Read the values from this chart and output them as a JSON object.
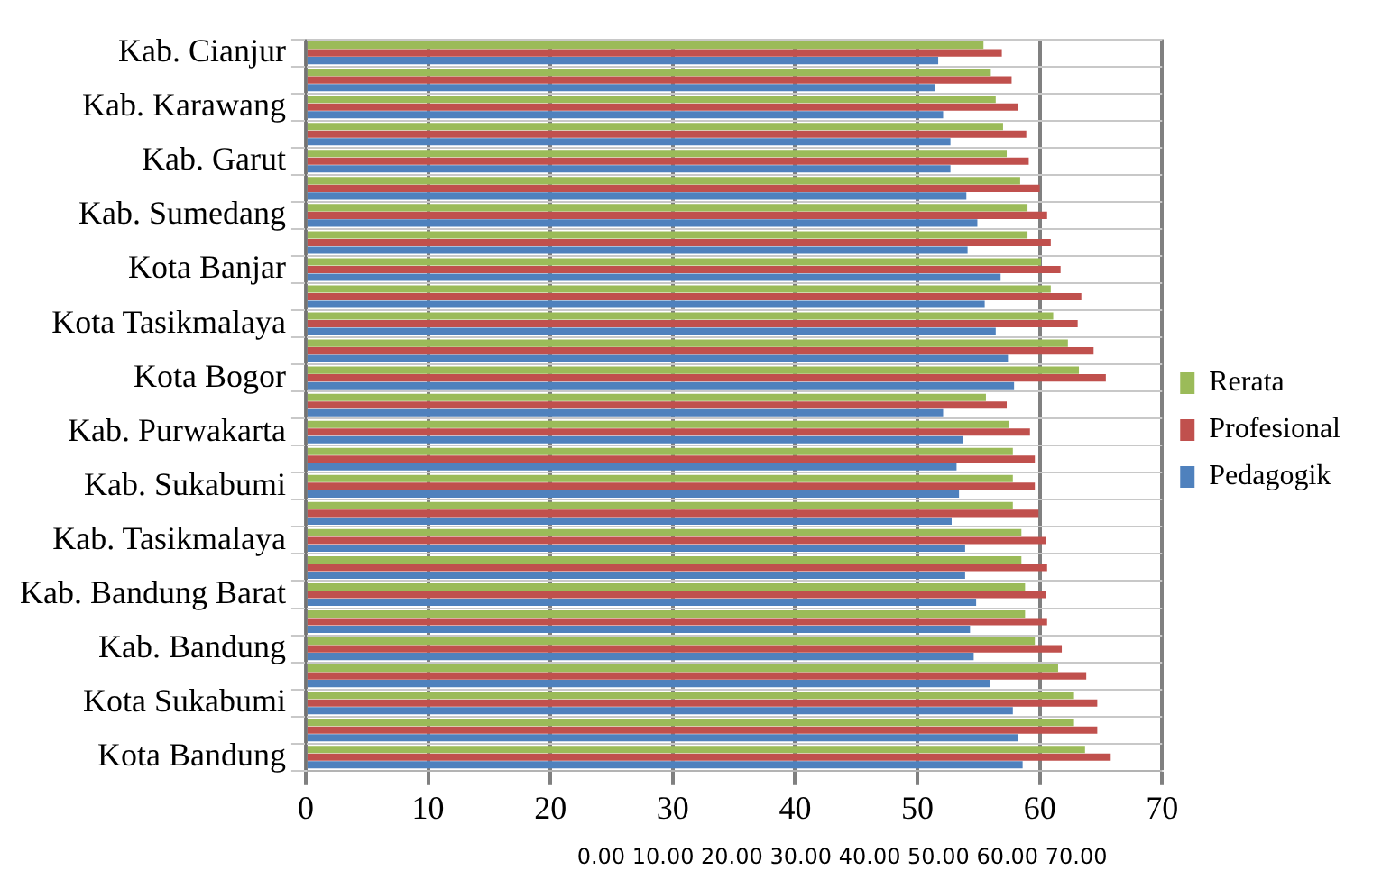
{
  "chart_data": {
    "type": "bar",
    "orientation": "horizontal",
    "categories": [
      "Kab. Cianjur",
      null,
      "Kab. Karawang",
      null,
      "Kab. Garut",
      null,
      "Kab. Sumedang",
      null,
      "Kota Banjar",
      null,
      "Kota Tasikmalaya",
      null,
      "Kota Bogor",
      null,
      "Kab. Purwakarta",
      null,
      "Kab. Sukabumi",
      null,
      "Kab. Tasikmalaya",
      null,
      "Kab. Bandung Barat",
      null,
      "Kab. Bandung",
      null,
      "Kota Sukabumi",
      null,
      "Kota Bandung"
    ],
    "series": [
      {
        "name": "Rerata",
        "color": "#9bbb59",
        "values": [
          55.4,
          56.0,
          56.4,
          57.0,
          57.3,
          58.4,
          59.0,
          59.0,
          60.1,
          60.9,
          61.1,
          62.3,
          63.2,
          55.6,
          57.5,
          57.8,
          57.8,
          57.8,
          58.5,
          58.5,
          58.8,
          58.8,
          59.6,
          61.5,
          62.8,
          62.8,
          63.7
        ]
      },
      {
        "name": "Profesional",
        "color": "#c0504d",
        "values": [
          56.9,
          57.7,
          58.2,
          58.9,
          59.1,
          60.0,
          60.6,
          60.9,
          61.7,
          63.4,
          63.1,
          64.4,
          65.4,
          57.3,
          59.2,
          59.6,
          59.6,
          59.9,
          60.5,
          60.6,
          60.5,
          60.6,
          61.8,
          63.8,
          64.7,
          64.7,
          65.8
        ]
      },
      {
        "name": "Pedagogik",
        "color": "#4f81bd",
        "values": [
          51.7,
          51.4,
          52.1,
          52.7,
          52.7,
          54.0,
          54.9,
          54.1,
          56.8,
          55.5,
          56.4,
          57.4,
          57.9,
          52.1,
          53.7,
          53.2,
          53.4,
          52.8,
          53.9,
          53.9,
          54.8,
          54.3,
          54.6,
          55.9,
          57.8,
          58.2,
          58.6
        ]
      }
    ],
    "xlim": [
      0,
      70
    ],
    "xticks": [
      0,
      10,
      20,
      30,
      40,
      50,
      60,
      70
    ],
    "grid": true,
    "legend": "right",
    "annotations": [
      "0.00 10.00 20.00 30.00 40.00 50.00 60.00 70.00"
    ]
  }
}
